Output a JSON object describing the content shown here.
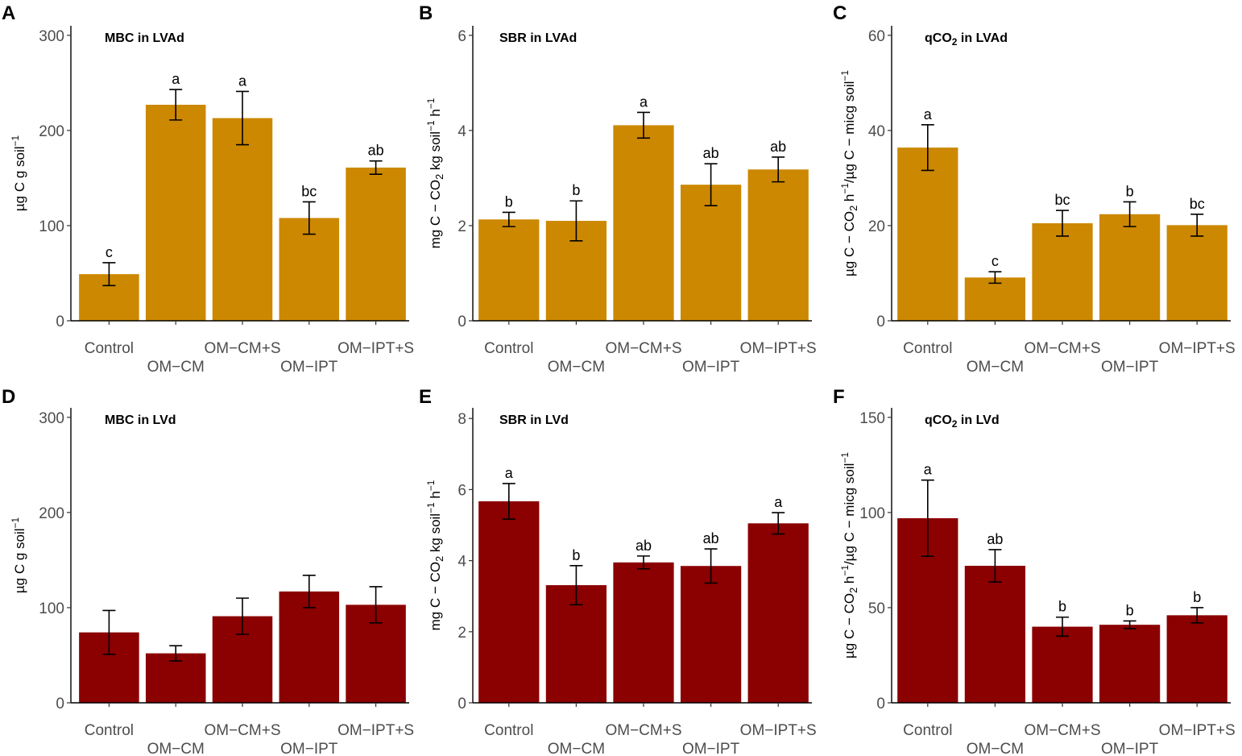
{
  "figure": {
    "colors": {
      "top_row": "#CC8800",
      "bottom_row": "#8B0000",
      "axis": "#000000",
      "tick_text": "#4d4d4d"
    }
  },
  "chart_data": [
    {
      "id": "A",
      "panel_label": "A",
      "type": "bar",
      "title_parts": [
        {
          "t": "MBC in LVAd",
          "s": null
        }
      ],
      "ylabel_parts": [
        {
          "t": "µg C g soil",
          "s": null
        },
        {
          "t": "−1",
          "s": "super"
        }
      ],
      "categories": [
        "Control",
        "OM−CM",
        "OM−CM+S",
        "OM−IPT",
        "OM−IPT+S"
      ],
      "values": [
        49,
        227,
        213,
        108,
        161
      ],
      "errors": [
        12,
        16,
        28,
        17,
        7
      ],
      "letters": [
        "c",
        "a",
        "a",
        "bc",
        "ab"
      ],
      "ylim": [
        0,
        310
      ],
      "yticks": [
        0,
        100,
        200,
        300
      ],
      "ytick_labels": [
        "0",
        "100",
        "200",
        "300"
      ],
      "color": "#CC8800"
    },
    {
      "id": "B",
      "panel_label": "B",
      "type": "bar",
      "title_parts": [
        {
          "t": "SBR in LVAd",
          "s": null
        }
      ],
      "ylabel_parts": [
        {
          "t": "mg C − CO",
          "s": null
        },
        {
          "t": "2",
          "s": "sub"
        },
        {
          "t": " kg soil",
          "s": null
        },
        {
          "t": "−1",
          "s": "super"
        },
        {
          "t": " h",
          "s": null
        },
        {
          "t": "−1",
          "s": "super"
        }
      ],
      "categories": [
        "Control",
        "OM−CM",
        "OM−CM+S",
        "OM−IPT",
        "OM−IPT+S"
      ],
      "values": [
        2.13,
        2.1,
        4.11,
        2.86,
        3.18
      ],
      "errors": [
        0.15,
        0.42,
        0.27,
        0.44,
        0.26
      ],
      "letters": [
        "b",
        "b",
        "a",
        "ab",
        "ab"
      ],
      "ylim": [
        0,
        6.2
      ],
      "yticks": [
        0,
        2,
        4,
        6
      ],
      "ytick_labels": [
        "0",
        "2",
        "4",
        "6"
      ],
      "color": "#CC8800"
    },
    {
      "id": "C",
      "panel_label": "C",
      "type": "bar",
      "title_parts": [
        {
          "t": "qCO",
          "s": null
        },
        {
          "t": "2",
          "s": "sub"
        },
        {
          "t": " in LVAd",
          "s": null
        }
      ],
      "ylabel_parts": [
        {
          "t": "µg C − CO",
          "s": null
        },
        {
          "t": "2",
          "s": "sub"
        },
        {
          "t": " h",
          "s": null
        },
        {
          "t": "−1",
          "s": "super"
        },
        {
          "t": "/µg C − micg soil",
          "s": null
        },
        {
          "t": "−1",
          "s": "super"
        }
      ],
      "categories": [
        "Control",
        "OM−CM",
        "OM−CM+S",
        "OM−IPT",
        "OM−IPT+S"
      ],
      "values": [
        36.4,
        9.1,
        20.5,
        22.4,
        20.1
      ],
      "errors": [
        4.8,
        1.2,
        2.7,
        2.6,
        2.3
      ],
      "letters": [
        "a",
        "c",
        "bc",
        "b",
        "bc"
      ],
      "ylim": [
        0,
        62
      ],
      "yticks": [
        0,
        20,
        40,
        60
      ],
      "ytick_labels": [
        "0",
        "20",
        "40",
        "60"
      ],
      "color": "#CC8800"
    },
    {
      "id": "D",
      "panel_label": "D",
      "type": "bar",
      "title_parts": [
        {
          "t": "MBC in LVd",
          "s": null
        }
      ],
      "ylabel_parts": [
        {
          "t": "µg C g soil",
          "s": null
        },
        {
          "t": "−1",
          "s": "super"
        }
      ],
      "categories": [
        "Control",
        "OM−CM",
        "OM−CM+S",
        "OM−IPT",
        "OM−IPT+S"
      ],
      "values": [
        74,
        52,
        91,
        117,
        103
      ],
      "errors": [
        23,
        8,
        19,
        17,
        19
      ],
      "letters": [
        "",
        "",
        "",
        "",
        ""
      ],
      "ylim": [
        0,
        310
      ],
      "yticks": [
        0,
        100,
        200,
        300
      ],
      "ytick_labels": [
        "0",
        "100",
        "200",
        "300"
      ],
      "color": "#8B0000"
    },
    {
      "id": "E",
      "panel_label": "E",
      "type": "bar",
      "title_parts": [
        {
          "t": "SBR in LVd",
          "s": null
        }
      ],
      "ylabel_parts": [
        {
          "t": "mg C − CO",
          "s": null
        },
        {
          "t": "2",
          "s": "sub"
        },
        {
          "t": " kg soil",
          "s": null
        },
        {
          "t": "−1",
          "s": "super"
        },
        {
          "t": " h",
          "s": null
        },
        {
          "t": "−1",
          "s": "super"
        }
      ],
      "categories": [
        "Control",
        "OM−CM",
        "OM−CM+S",
        "OM−IPT",
        "OM−IPT+S"
      ],
      "values": [
        5.67,
        3.31,
        3.95,
        3.85,
        5.05
      ],
      "errors": [
        0.5,
        0.55,
        0.18,
        0.48,
        0.3
      ],
      "letters": [
        "a",
        "b",
        "ab",
        "ab",
        "a"
      ],
      "ylim": [
        0,
        8.3
      ],
      "yticks": [
        0,
        2,
        4,
        6,
        8
      ],
      "ytick_labels": [
        "0",
        "2",
        "4",
        "6",
        "8"
      ],
      "color": "#8B0000"
    },
    {
      "id": "F",
      "panel_label": "F",
      "type": "bar",
      "title_parts": [
        {
          "t": "qCO",
          "s": null
        },
        {
          "t": "2",
          "s": "sub"
        },
        {
          "t": " in LVd",
          "s": null
        }
      ],
      "ylabel_parts": [
        {
          "t": "µg C − CO",
          "s": null
        },
        {
          "t": "2",
          "s": "sub"
        },
        {
          "t": " h",
          "s": null
        },
        {
          "t": "−1",
          "s": "super"
        },
        {
          "t": "/µg C − micg soil",
          "s": null
        },
        {
          "t": "−1",
          "s": "super"
        }
      ],
      "categories": [
        "Control",
        "OM−CM",
        "OM−CM+S",
        "OM−IPT",
        "OM−IPT+S"
      ],
      "values": [
        97,
        72,
        40,
        41,
        46
      ],
      "errors": [
        20,
        8.5,
        5,
        2,
        4
      ],
      "letters": [
        "a",
        "ab",
        "b",
        "b",
        "b"
      ],
      "ylim": [
        0,
        155
      ],
      "yticks": [
        0,
        50,
        100,
        150
      ],
      "ytick_labels": [
        "0",
        "50",
        "100",
        "150"
      ],
      "color": "#8B0000"
    }
  ]
}
